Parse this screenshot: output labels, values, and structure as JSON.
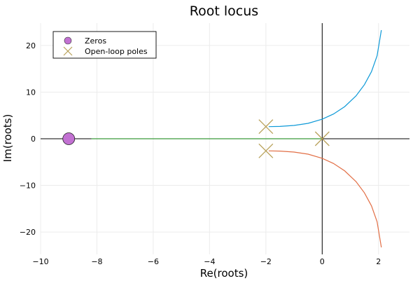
{
  "chart_data": {
    "type": "scatter",
    "title": "Root locus",
    "xlabel": "Re(roots)",
    "ylabel": "Im(roots)",
    "xlim": [
      -10,
      3.1
    ],
    "ylim": [
      -24.8,
      24.8
    ],
    "xticks": [
      -10,
      -8,
      -6,
      -4,
      -2,
      0,
      2
    ],
    "yticks": [
      -20,
      -10,
      0,
      10,
      20
    ],
    "xtick_labels": [
      "−10",
      "−8",
      "−6",
      "−4",
      "−2",
      "0",
      "2"
    ],
    "ytick_labels": [
      "−20",
      "−10",
      "0",
      "10",
      "20"
    ],
    "grid": true,
    "legend_position": "top-left",
    "legend": [
      {
        "label": "Zeros",
        "marker": "circle",
        "color": "#c271d2"
      },
      {
        "label": "Open-loop poles",
        "marker": "x",
        "color": "#b8a15a"
      }
    ],
    "series": [
      {
        "color": "#0e9ad8",
        "x": [
          -1.9,
          -1.5,
          -1.0,
          -0.5,
          0.0,
          0.4,
          0.8,
          1.2,
          1.5,
          1.75,
          1.95,
          2.1
        ],
        "y": [
          2.6,
          2.65,
          2.85,
          3.3,
          4.2,
          5.3,
          6.9,
          9.2,
          11.6,
          14.4,
          17.8,
          23.3
        ]
      },
      {
        "color": "#e26f46",
        "x": [
          -1.9,
          -1.5,
          -1.0,
          -0.5,
          0.0,
          0.4,
          0.8,
          1.2,
          1.5,
          1.75,
          1.95,
          2.1
        ],
        "y": [
          -2.6,
          -2.65,
          -2.85,
          -3.3,
          -4.2,
          -5.3,
          -6.9,
          -9.2,
          -11.6,
          -14.4,
          -17.8,
          -23.3
        ]
      },
      {
        "color": "#3a9a3a",
        "x": [
          -8.2,
          0.0
        ],
        "y": [
          0,
          0
        ]
      }
    ],
    "zeros": [
      {
        "x": -9,
        "y": 0
      }
    ],
    "poles": [
      {
        "x": -2,
        "y": 2.6
      },
      {
        "x": -2,
        "y": -2.6
      },
      {
        "x": 0,
        "y": 0
      }
    ]
  }
}
